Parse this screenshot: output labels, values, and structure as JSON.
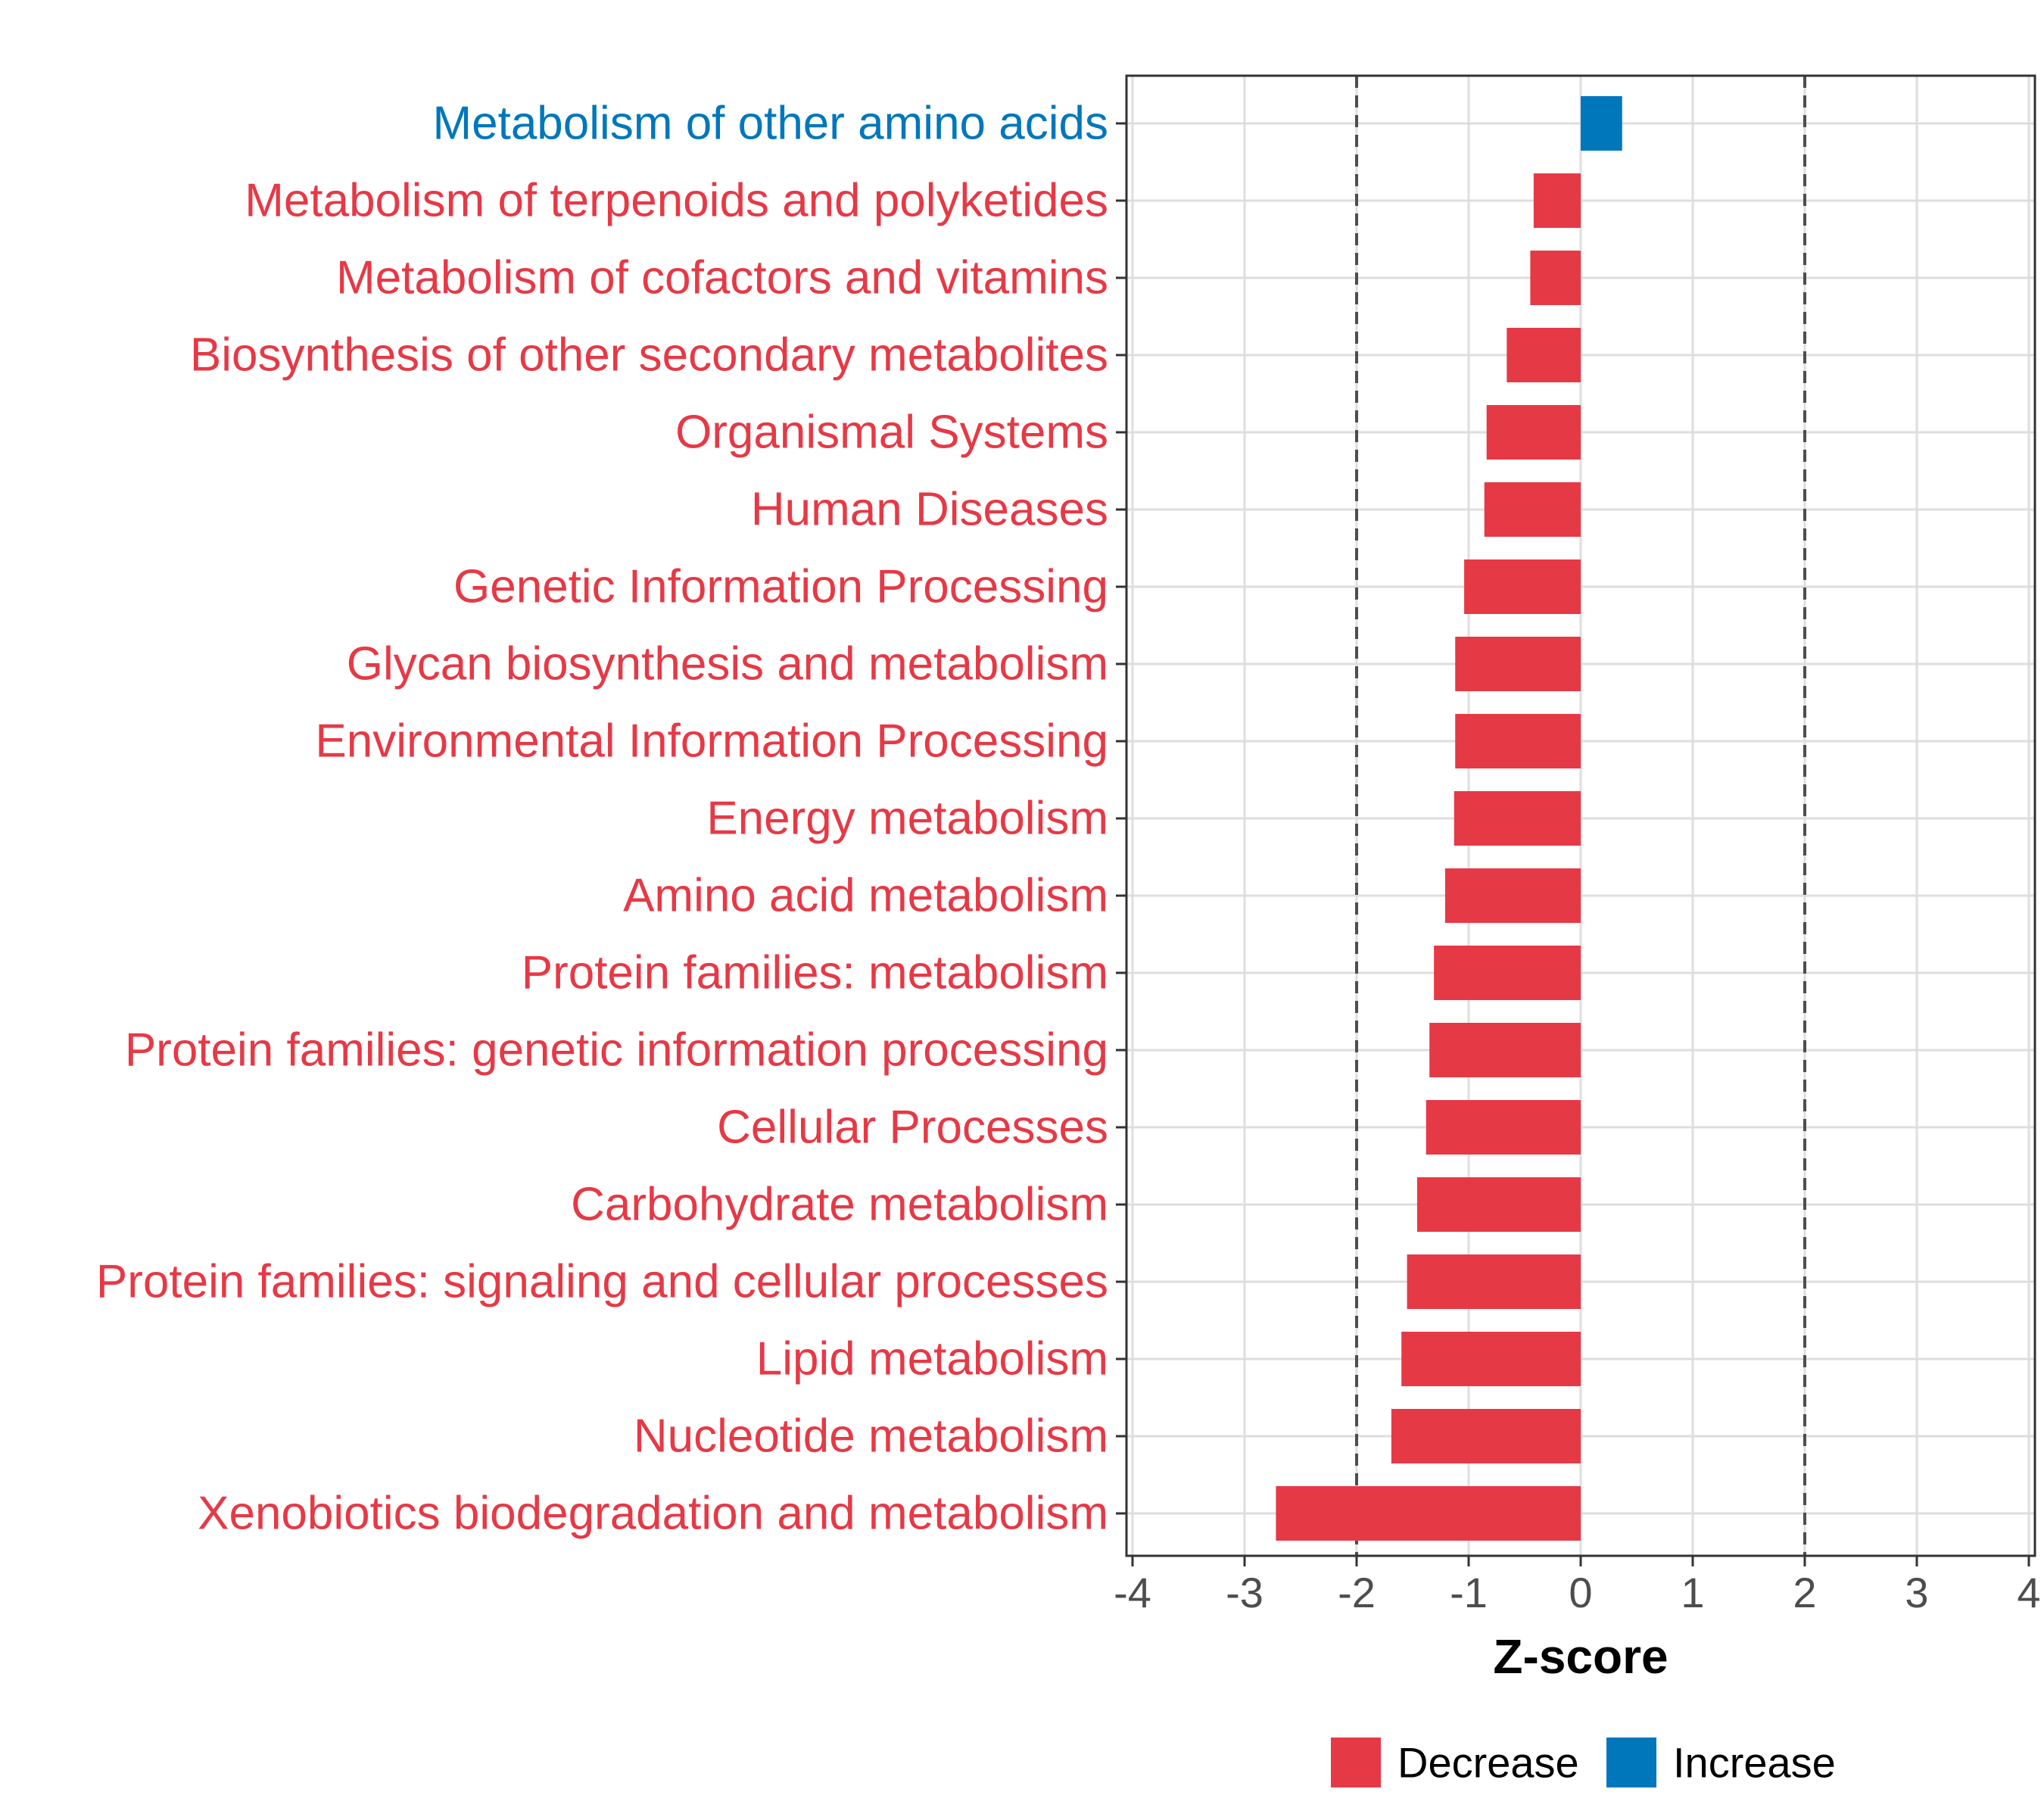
{
  "chart_data": {
    "type": "bar",
    "orientation": "horizontal",
    "title": "",
    "xlabel": "Z-score",
    "ylabel": "",
    "xlim": [
      -4,
      4
    ],
    "x_ticks": [
      "-4",
      "-3",
      "-2",
      "-1",
      "0",
      "1",
      "2",
      "3",
      "4"
    ],
    "threshold_lines": [
      -2,
      2
    ],
    "grid": true,
    "legend_position": "bottom",
    "categories": [
      "Metabolism of other amino acids",
      "Metabolism of terpenoids and polyketides",
      "Metabolism of cofactors and vitamins",
      "Biosynthesis of other secondary metabolites",
      "Organismal Systems",
      "Human Diseases",
      "Genetic Information Processing",
      "Glycan biosynthesis and metabolism",
      "Environmental Information Processing",
      "Energy metabolism",
      "Amino acid metabolism",
      "Protein families: metabolism",
      "Protein families: genetic information processing",
      "Cellular Processes",
      "Carbohydrate metabolism",
      "Protein families: signaling and cellular processes",
      "Lipid metabolism",
      "Nucleotide metabolism",
      "Xenobiotics biodegradation and metabolism"
    ],
    "values": [
      0.37,
      -0.42,
      -0.45,
      -0.66,
      -0.84,
      -0.86,
      -1.04,
      -1.12,
      -1.12,
      -1.13,
      -1.21,
      -1.31,
      -1.35,
      -1.38,
      -1.46,
      -1.55,
      -1.6,
      -1.69,
      -2.72
    ],
    "groups": [
      "Increase",
      "Decrease",
      "Decrease",
      "Decrease",
      "Decrease",
      "Decrease",
      "Decrease",
      "Decrease",
      "Decrease",
      "Decrease",
      "Decrease",
      "Decrease",
      "Decrease",
      "Decrease",
      "Decrease",
      "Decrease",
      "Decrease",
      "Decrease",
      "Decrease"
    ],
    "legend": [
      {
        "label": "Decrease",
        "color": "#e63946"
      },
      {
        "label": "Increase",
        "color": "#0077bb"
      }
    ]
  }
}
